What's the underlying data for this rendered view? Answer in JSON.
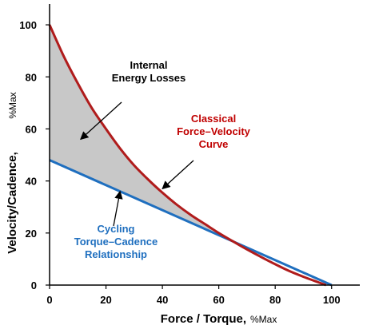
{
  "chart_data": {
    "type": "line",
    "xlabel": "Force / Torque,",
    "xlabel_unit": "%Max",
    "ylabel": "Velocity/Cadence,",
    "ylabel_unit": "%Max",
    "xlim": [
      0,
      110
    ],
    "ylim": [
      0,
      108
    ],
    "x_ticks": [
      0,
      20,
      40,
      60,
      80,
      100
    ],
    "y_ticks": [
      0,
      20,
      40,
      60,
      80,
      100
    ],
    "grid": false,
    "series": [
      {
        "name": "Classical Force–Velocity Curve",
        "color": "#b01c1c",
        "x": [
          0,
          5,
          10,
          15,
          20,
          25,
          30,
          35,
          40,
          45,
          50,
          55,
          60,
          65,
          70,
          75,
          80,
          85,
          90,
          95,
          98
        ],
        "y": [
          100,
          88,
          77.5,
          68,
          60,
          52.5,
          46,
          40.5,
          35.5,
          31,
          27,
          23.5,
          20,
          16.8,
          13.7,
          10.8,
          8,
          5.4,
          3.2,
          1.2,
          0
        ]
      },
      {
        "name": "Cycling Torque–Cadence Relationship",
        "color": "#1f6fbf",
        "x": [
          0,
          100
        ],
        "y": [
          48,
          0
        ]
      }
    ],
    "shaded_region": {
      "between": [
        "Classical Force–Velocity Curve",
        "Cycling Torque–Cadence Relationship"
      ],
      "color": "#c8c8c8"
    },
    "annotations": [
      {
        "lines": [
          "Internal",
          "Energy Losses"
        ],
        "color": "#000000",
        "arrow_to": [
          11,
          56
        ]
      },
      {
        "lines": [
          "Classical",
          "Force–Velocity",
          "Curve"
        ],
        "color": "#c00000",
        "arrow_to": [
          40,
          37
        ]
      },
      {
        "lines": [
          "Cycling",
          "Torque–Cadence",
          "Relationship"
        ],
        "color": "#1f6fbf",
        "arrow_to": [
          25,
          36
        ]
      }
    ]
  }
}
